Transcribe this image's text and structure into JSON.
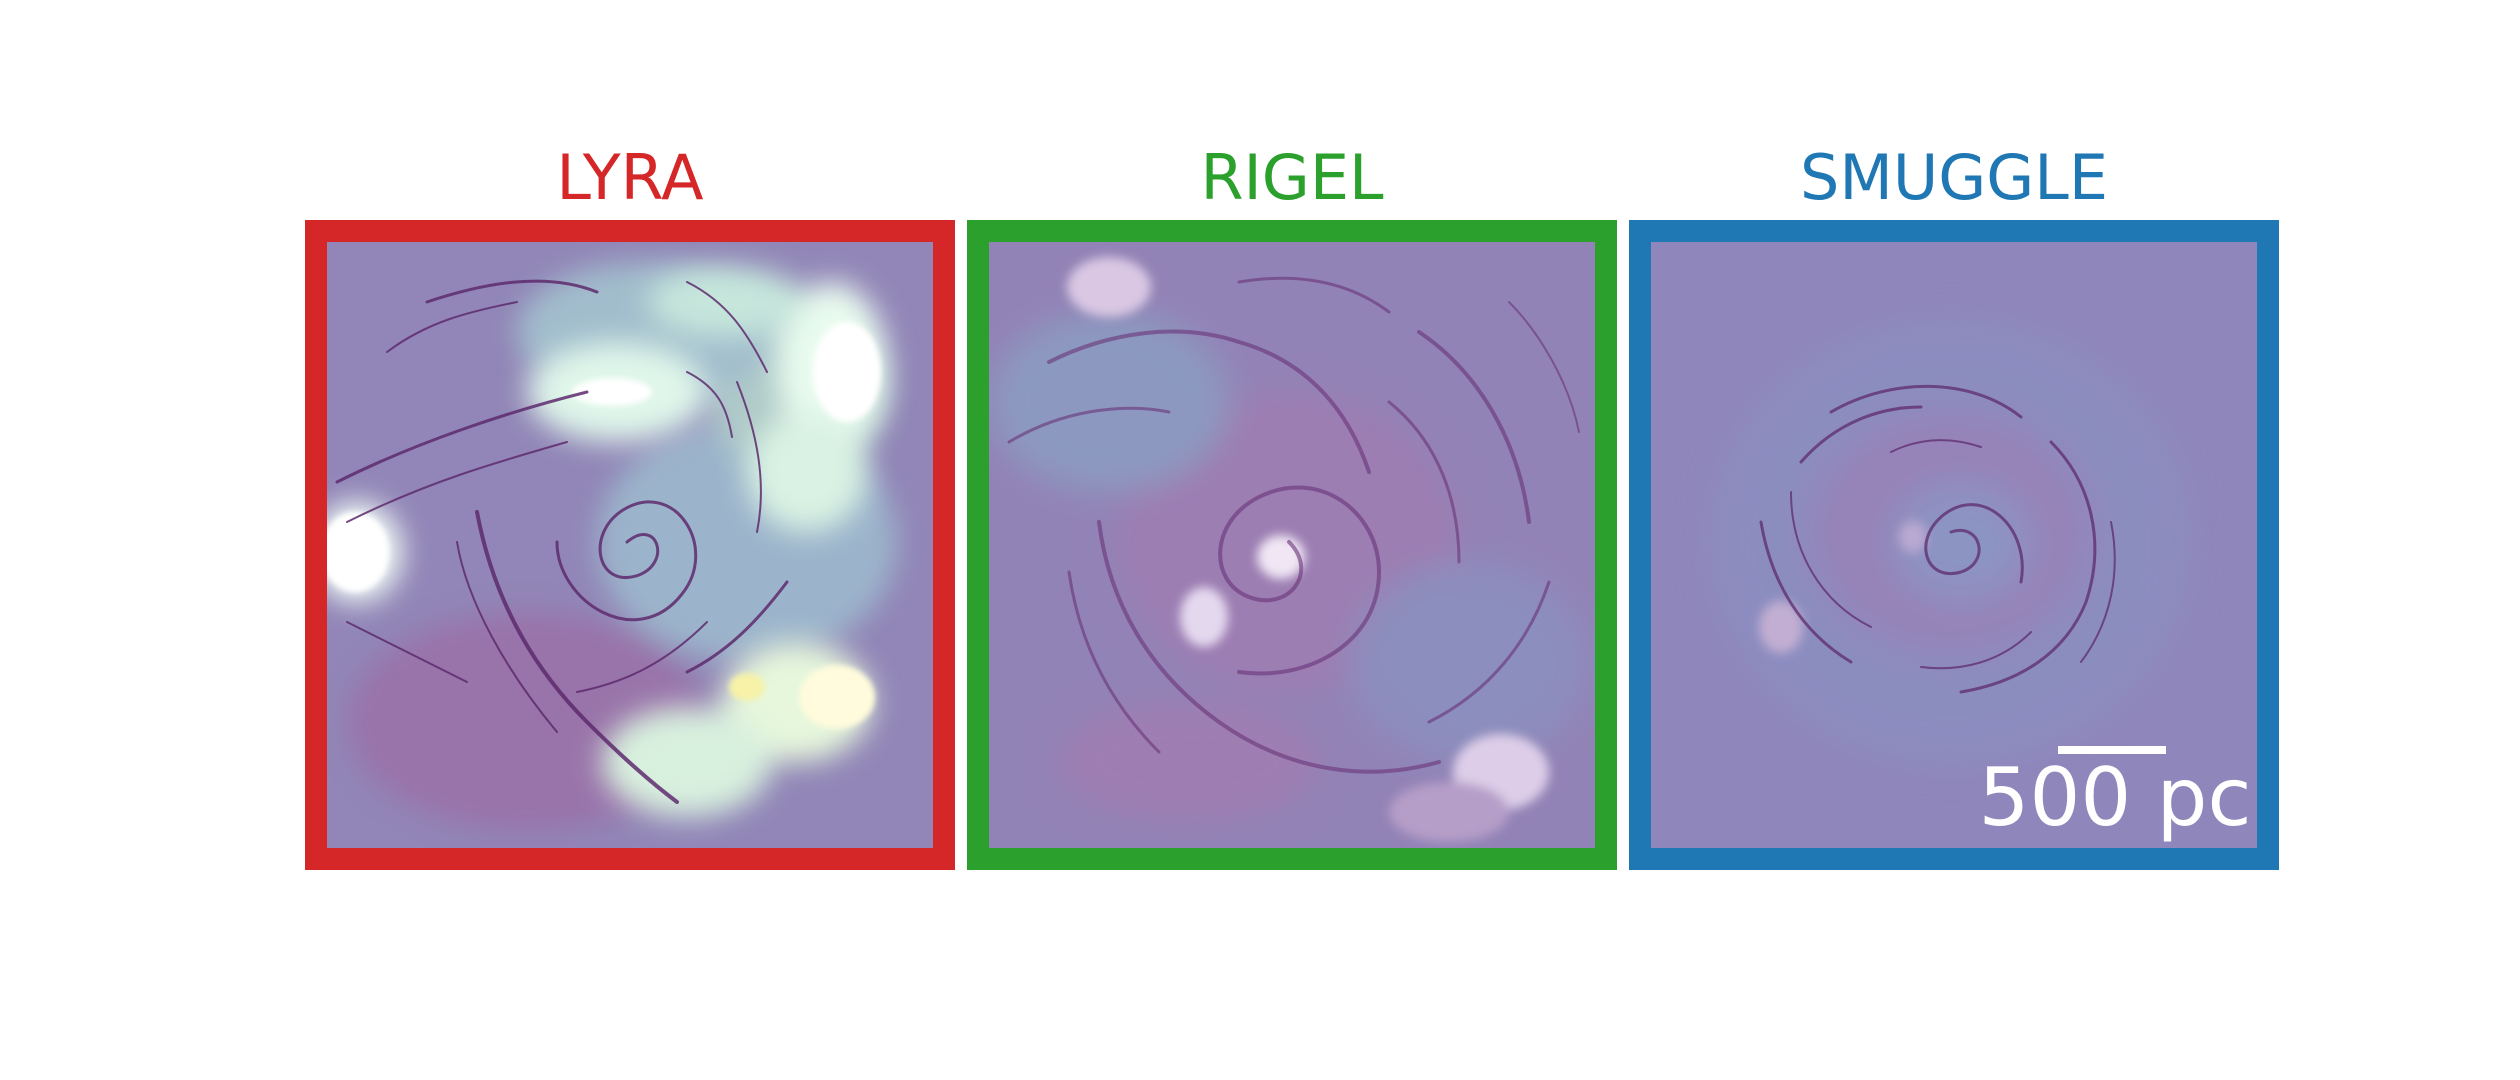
{
  "panels": [
    {
      "title": "LYRA",
      "color": "#d62728"
    },
    {
      "title": "RIGEL",
      "color": "#2ca02c"
    },
    {
      "title": "SMUGGLE",
      "color": "#1f77b4"
    }
  ],
  "scale_bar": {
    "label": "500 pc"
  },
  "image_colors": {
    "background": "#8f84b8",
    "gas_dark": "#5e2b6e",
    "gas_light": "#c9ead8",
    "hot_spot": "#ffffff"
  }
}
